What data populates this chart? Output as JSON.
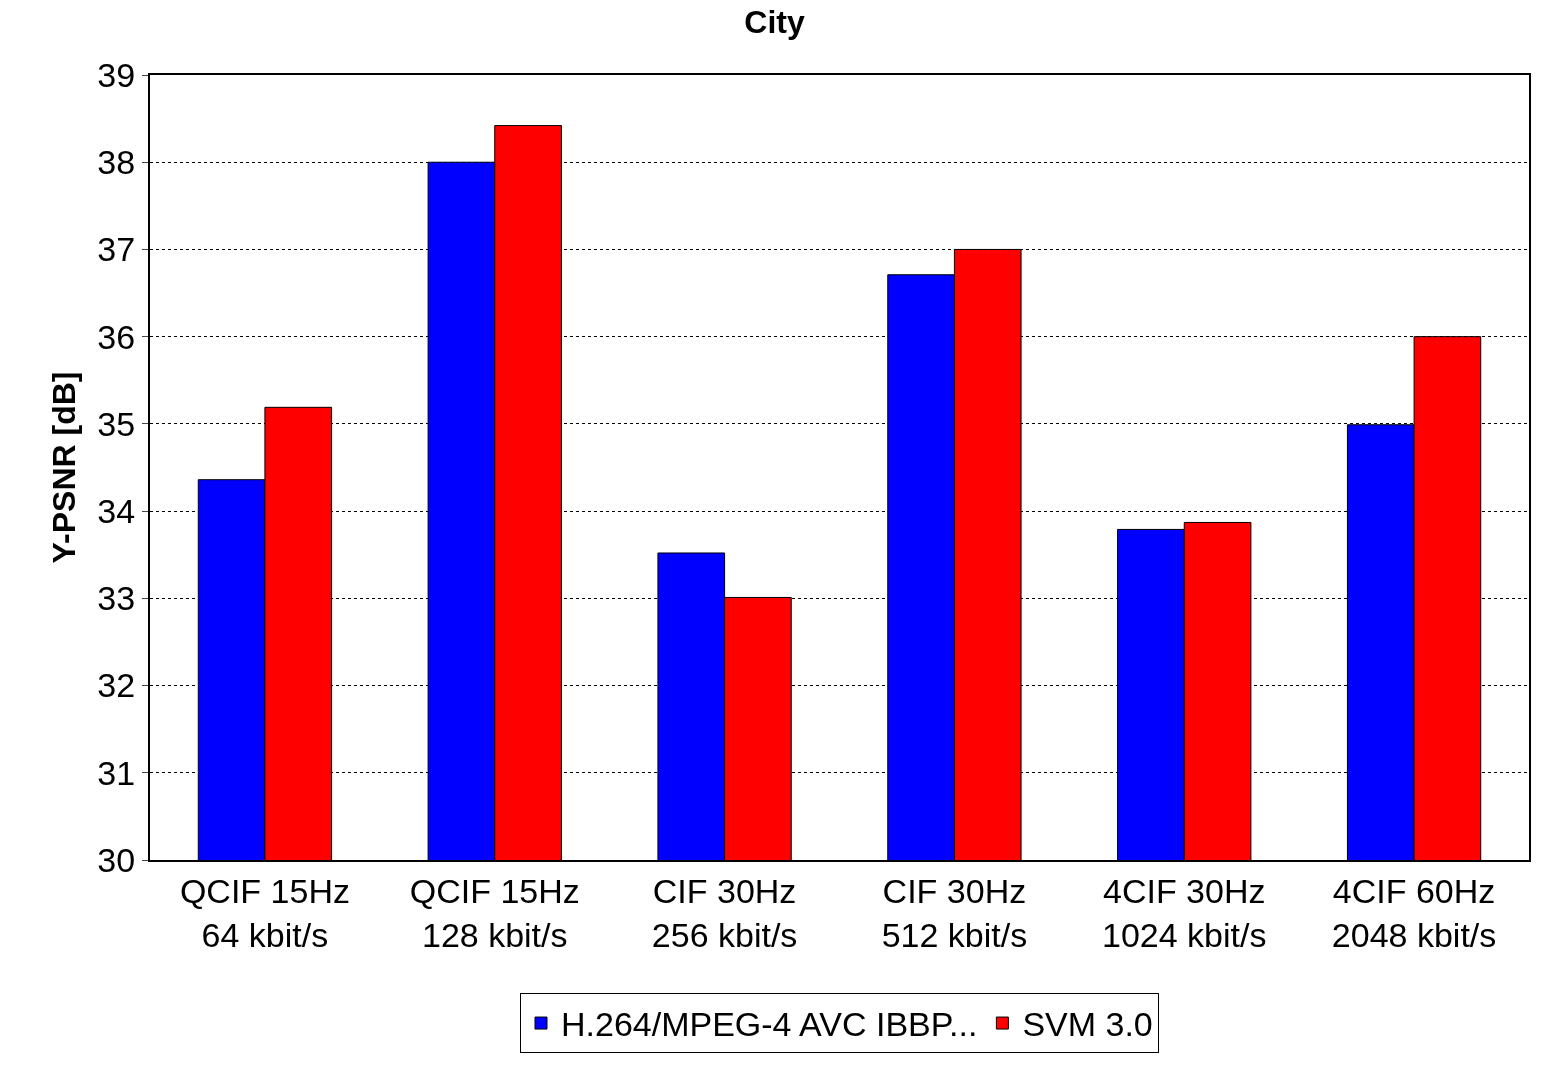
{
  "chart_data": {
    "type": "bar",
    "title": "City",
    "ylabel": "Y-PSNR [dB]",
    "categories": [
      "QCIF 15Hz\n64 kbit/s",
      "QCIF 15Hz\n128 kbit/s",
      "CIF 30Hz\n256 kbit/s",
      "CIF 30Hz\n512 kbit/s",
      "4CIF 30Hz\n1024 kbit/s",
      "4CIF 60Hz\n2048 kbit/s"
    ],
    "series": [
      {
        "name": "H.264/MPEG-4 AVC IBBP...",
        "color": "#0000ff",
        "values": [
          34.36,
          38.0,
          33.52,
          36.71,
          33.79,
          34.99
        ]
      },
      {
        "name": "SVM 3.0",
        "color": "#ff0000",
        "values": [
          35.19,
          38.42,
          33.01,
          37.0,
          33.87,
          36.0
        ]
      }
    ],
    "ylim": [
      30,
      39
    ],
    "yticks": [
      30,
      31,
      32,
      33,
      34,
      35,
      36,
      37,
      38,
      39
    ],
    "grid": "y",
    "legend": "bottom"
  }
}
